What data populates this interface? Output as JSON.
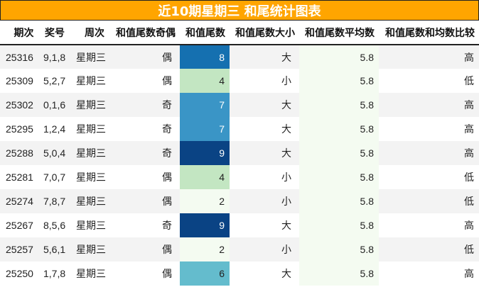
{
  "title": "近10期星期三 和尾统计图表",
  "colors": {
    "title_bg": "#FFA500",
    "avg_col_bg": "#f4fbf1",
    "row_alt_bg": "#f3f3f3",
    "tail_scale": {
      "2": {
        "bg": "#f4fbf1",
        "fg": "#222222"
      },
      "4": {
        "bg": "#c3e6c2",
        "fg": "#222222"
      },
      "6": {
        "bg": "#64bccd",
        "fg": "#222222"
      },
      "7": {
        "bg": "#3a95c6",
        "fg": "#ffffff"
      },
      "8": {
        "bg": "#1570b0",
        "fg": "#ffffff"
      },
      "9": {
        "bg": "#0a4384",
        "fg": "#ffffff"
      }
    }
  },
  "table": {
    "headers": [
      "期次",
      "奖号",
      "周次",
      "和值尾数奇偶",
      "和值尾数",
      "和值尾数大小",
      "和值尾数平均数",
      "和值尾数和均数比较"
    ],
    "rows": [
      {
        "issue": "25316",
        "numbers": "9,1,8",
        "weekday": "星期三",
        "parity": "偶",
        "tail": "8",
        "size": "大",
        "avg": "5.8",
        "compare": "高"
      },
      {
        "issue": "25309",
        "numbers": "5,2,7",
        "weekday": "星期三",
        "parity": "偶",
        "tail": "4",
        "size": "小",
        "avg": "5.8",
        "compare": "低"
      },
      {
        "issue": "25302",
        "numbers": "0,1,6",
        "weekday": "星期三",
        "parity": "奇",
        "tail": "7",
        "size": "大",
        "avg": "5.8",
        "compare": "高"
      },
      {
        "issue": "25295",
        "numbers": "1,2,4",
        "weekday": "星期三",
        "parity": "奇",
        "tail": "7",
        "size": "大",
        "avg": "5.8",
        "compare": "高"
      },
      {
        "issue": "25288",
        "numbers": "5,0,4",
        "weekday": "星期三",
        "parity": "奇",
        "tail": "9",
        "size": "大",
        "avg": "5.8",
        "compare": "高"
      },
      {
        "issue": "25281",
        "numbers": "7,0,7",
        "weekday": "星期三",
        "parity": "偶",
        "tail": "4",
        "size": "小",
        "avg": "5.8",
        "compare": "低"
      },
      {
        "issue": "25274",
        "numbers": "7,8,7",
        "weekday": "星期三",
        "parity": "偶",
        "tail": "2",
        "size": "小",
        "avg": "5.8",
        "compare": "低"
      },
      {
        "issue": "25267",
        "numbers": "8,5,6",
        "weekday": "星期三",
        "parity": "奇",
        "tail": "9",
        "size": "大",
        "avg": "5.8",
        "compare": "高"
      },
      {
        "issue": "25257",
        "numbers": "5,6,1",
        "weekday": "星期三",
        "parity": "偶",
        "tail": "2",
        "size": "小",
        "avg": "5.8",
        "compare": "低"
      },
      {
        "issue": "25250",
        "numbers": "1,7,8",
        "weekday": "星期三",
        "parity": "偶",
        "tail": "6",
        "size": "大",
        "avg": "5.8",
        "compare": "高"
      }
    ]
  }
}
